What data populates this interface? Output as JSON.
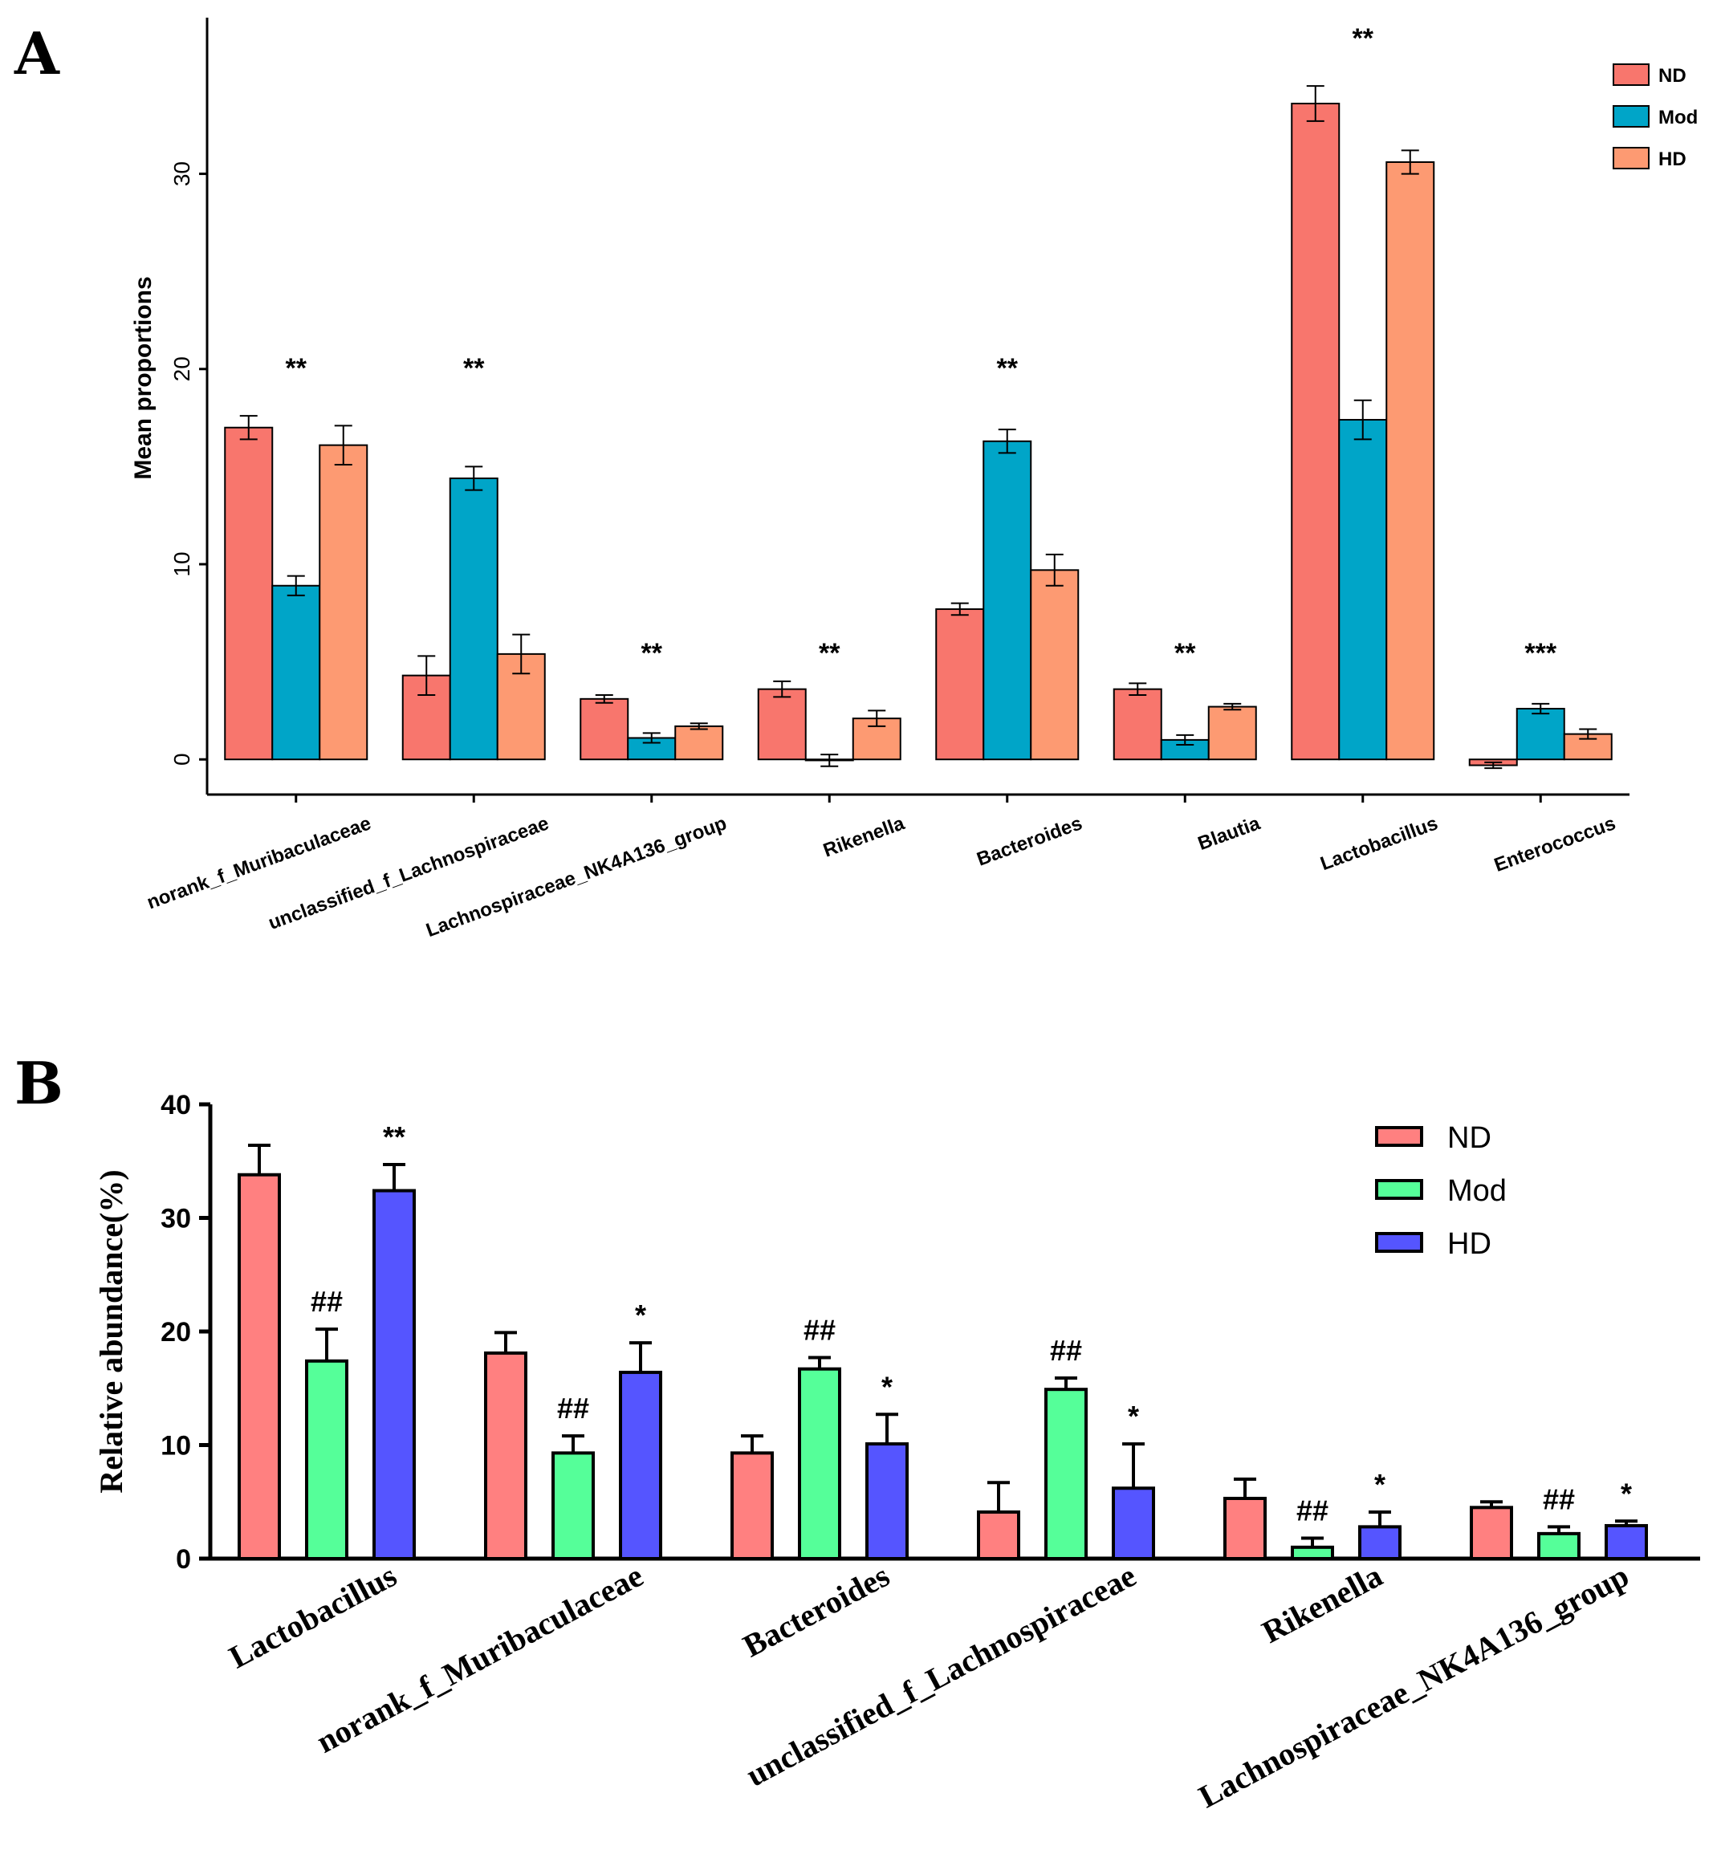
{
  "panels": {
    "a": {
      "letter": "A"
    },
    "b": {
      "letter": "B"
    }
  },
  "chart_data": [
    {
      "id": "A",
      "type": "bar",
      "title": "",
      "xlabel": "",
      "ylabel": "Mean proportions",
      "ylim": [
        -1.8,
        38
      ],
      "yticks": [
        0,
        10,
        20,
        30
      ],
      "grid": false,
      "legend_position": "top-right",
      "categories": [
        "norank_f_Muribaculaceae",
        "unclassified_f_Lachnospiraceae",
        "Lachnospiraceae_NK4A136_group",
        "Rikenella",
        "Bacteroides",
        "Blautia",
        "Lactobacillus",
        "Enterococcus"
      ],
      "series": [
        {
          "name": "ND",
          "color": "#F8766D",
          "values": [
            17.0,
            4.3,
            3.1,
            3.6,
            7.7,
            3.6,
            33.6,
            -0.3
          ],
          "errors": [
            0.6,
            1.0,
            0.2,
            0.4,
            0.3,
            0.3,
            0.9,
            0.15
          ]
        },
        {
          "name": "Mod",
          "color": "#00A5C8",
          "values": [
            8.9,
            14.4,
            1.1,
            -0.05,
            16.3,
            1.0,
            17.4,
            2.6
          ],
          "errors": [
            0.5,
            0.6,
            0.25,
            0.3,
            0.6,
            0.25,
            1.0,
            0.25
          ]
        },
        {
          "name": "HD",
          "color": "#FD9A72",
          "values": [
            16.1,
            5.4,
            1.7,
            2.1,
            9.7,
            2.7,
            30.6,
            1.3
          ],
          "errors": [
            1.0,
            1.0,
            0.15,
            0.4,
            0.8,
            0.15,
            0.6,
            0.25
          ]
        }
      ],
      "significance": [
        "**",
        "**",
        "**",
        "**",
        "**",
        "**",
        "**",
        "***"
      ]
    },
    {
      "id": "B",
      "type": "bar",
      "title": "",
      "xlabel": "",
      "ylabel": "Relative abundance(%)",
      "ylim": [
        0,
        40
      ],
      "yticks": [
        0,
        10,
        20,
        30,
        40
      ],
      "grid": false,
      "legend_position": "top-right",
      "categories": [
        "Lactobacillus",
        "norank_f_Muribaculaceae",
        "Bacteroides",
        "unclassified_f_Lachnospiraceae",
        "Rikenella",
        "Lachnospiraceae_NK4A136_group"
      ],
      "series": [
        {
          "name": "ND",
          "color": "#FF8080",
          "values": [
            33.8,
            18.1,
            9.3,
            4.1,
            5.3,
            4.5
          ],
          "errors": [
            2.6,
            1.8,
            1.5,
            2.6,
            1.7,
            0.5
          ]
        },
        {
          "name": "Mod",
          "color": "#55FF99",
          "values": [
            17.4,
            9.3,
            16.7,
            14.9,
            1.0,
            2.2
          ],
          "errors": [
            2.8,
            1.5,
            1.0,
            1.0,
            0.8,
            0.6
          ]
        },
        {
          "name": "HD",
          "color": "#5555FF",
          "values": [
            32.4,
            16.4,
            10.1,
            6.2,
            2.8,
            2.9
          ],
          "errors": [
            2.3,
            2.6,
            2.6,
            3.9,
            1.3,
            0.4
          ]
        }
      ],
      "annotations": {
        "Mod": [
          "##",
          "##",
          "##",
          "##",
          "##",
          "##"
        ],
        "HD": [
          "**",
          "*",
          "*",
          "*",
          "*",
          "*"
        ]
      }
    }
  ]
}
